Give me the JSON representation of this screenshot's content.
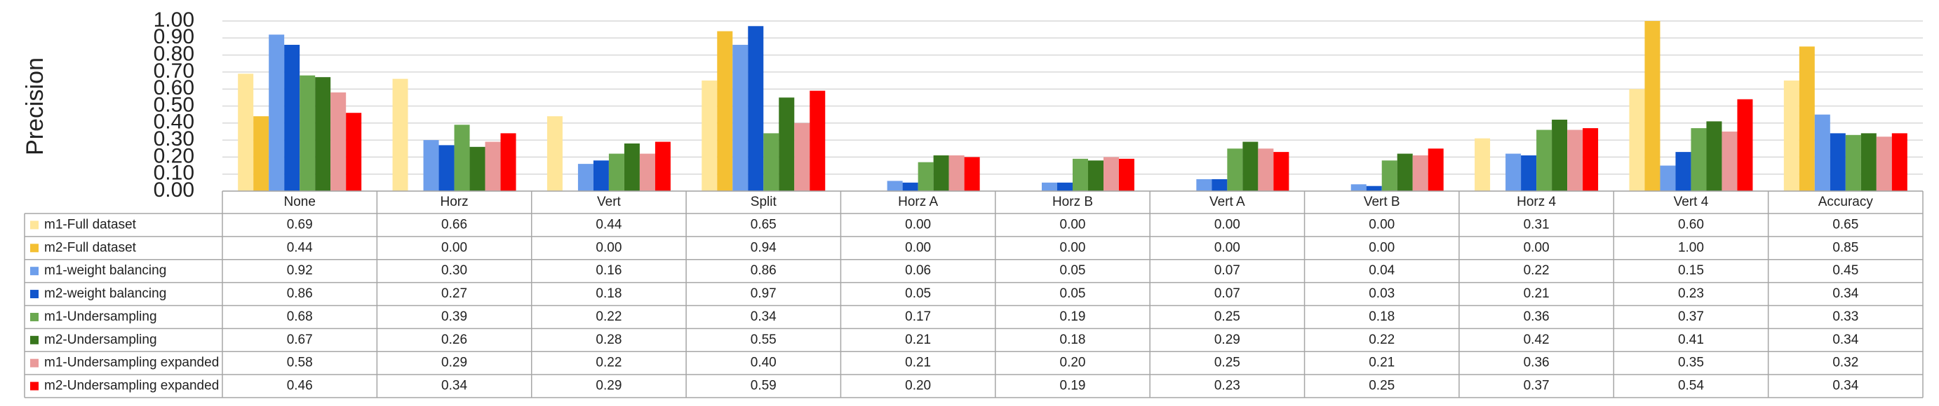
{
  "chart_data": {
    "type": "bar",
    "y_label": "Precision",
    "categories": [
      "None",
      "Horz",
      "Vert",
      "Split",
      "Horz A",
      "Horz B",
      "Vert A",
      "Vert B",
      "Horz 4",
      "Vert 4",
      "Accuracy"
    ],
    "ylim": [
      0,
      1
    ],
    "yticks": [
      {
        "value": 0,
        "label": "0.00"
      },
      {
        "value": 0.1,
        "label": "0.10"
      },
      {
        "value": 0.2,
        "label": "0.20"
      },
      {
        "value": 0.3,
        "label": "0.30"
      },
      {
        "value": 0.4,
        "label": "0.40"
      },
      {
        "value": 0.5,
        "label": "0.50"
      },
      {
        "value": 0.6,
        "label": "0.60"
      },
      {
        "value": 0.7,
        "label": "0.70"
      },
      {
        "value": 0.8,
        "label": "0.80"
      },
      {
        "value": 0.9,
        "label": "0.90"
      },
      {
        "value": 1,
        "label": "1.00"
      }
    ],
    "grid": true,
    "series": [
      {
        "name": "m1-Full dataset",
        "color": "#ffe699",
        "values": [
          0.69,
          0.66,
          0.44,
          0.65,
          0,
          0,
          0,
          0,
          0.31,
          0.6,
          0.65
        ],
        "value_labels": [
          "0.69",
          "0.66",
          "0.44",
          "0.65",
          "0.00",
          "0.00",
          "0.00",
          "0.00",
          "0.31",
          "0.60",
          "0.65"
        ]
      },
      {
        "name": "m2-Full dataset",
        "color": "#f4c033",
        "values": [
          0.44,
          0,
          0,
          0.94,
          0,
          0,
          0,
          0,
          0,
          1,
          0.85
        ],
        "value_labels": [
          "0.44",
          "0.00",
          "0.00",
          "0.94",
          "0.00",
          "0.00",
          "0.00",
          "0.00",
          "0.00",
          "1.00",
          "0.85"
        ]
      },
      {
        "name": "m1-weight balancing",
        "color": "#6d9eeb",
        "values": [
          0.92,
          0.3,
          0.16,
          0.86,
          0.06,
          0.05,
          0.07,
          0.04,
          0.22,
          0.15,
          0.45
        ],
        "value_labels": [
          "0.92",
          "0.30",
          "0.16",
          "0.86",
          "0.06",
          "0.05",
          "0.07",
          "0.04",
          "0.22",
          "0.15",
          "0.45"
        ]
      },
      {
        "name": "m2-weight balancing",
        "color": "#1155cc",
        "values": [
          0.86,
          0.27,
          0.18,
          0.97,
          0.05,
          0.05,
          0.07,
          0.03,
          0.21,
          0.23,
          0.34
        ],
        "value_labels": [
          "0.86",
          "0.27",
          "0.18",
          "0.97",
          "0.05",
          "0.05",
          "0.07",
          "0.03",
          "0.21",
          "0.23",
          "0.34"
        ]
      },
      {
        "name": "m1-Undersampling",
        "color": "#6aa84f",
        "values": [
          0.68,
          0.39,
          0.22,
          0.34,
          0.17,
          0.19,
          0.25,
          0.18,
          0.36,
          0.37,
          0.33
        ],
        "value_labels": [
          "0.68",
          "0.39",
          "0.22",
          "0.34",
          "0.17",
          "0.19",
          "0.25",
          "0.18",
          "0.36",
          "0.37",
          "0.33"
        ]
      },
      {
        "name": "m2-Undersampling",
        "color": "#38761d",
        "values": [
          0.67,
          0.26,
          0.28,
          0.55,
          0.21,
          0.18,
          0.29,
          0.22,
          0.42,
          0.41,
          0.34
        ],
        "value_labels": [
          "0.67",
          "0.26",
          "0.28",
          "0.55",
          "0.21",
          "0.18",
          "0.29",
          "0.22",
          "0.42",
          "0.41",
          "0.34"
        ]
      },
      {
        "name": "m1-Undersampling expanded",
        "color": "#ea9999",
        "values": [
          0.58,
          0.29,
          0.22,
          0.4,
          0.21,
          0.2,
          0.25,
          0.21,
          0.36,
          0.35,
          0.32
        ],
        "value_labels": [
          "0.58",
          "0.29",
          "0.22",
          "0.40",
          "0.21",
          "0.20",
          "0.25",
          "0.21",
          "0.36",
          "0.35",
          "0.32"
        ]
      },
      {
        "name": "m2-Undersampling expanded",
        "color": "#ff0000",
        "values": [
          0.46,
          0.34,
          0.29,
          0.59,
          0.2,
          0.19,
          0.23,
          0.25,
          0.37,
          0.54,
          0.34
        ],
        "value_labels": [
          "0.46",
          "0.34",
          "0.29",
          "0.59",
          "0.20",
          "0.19",
          "0.23",
          "0.25",
          "0.37",
          "0.54",
          "0.34"
        ]
      }
    ]
  }
}
